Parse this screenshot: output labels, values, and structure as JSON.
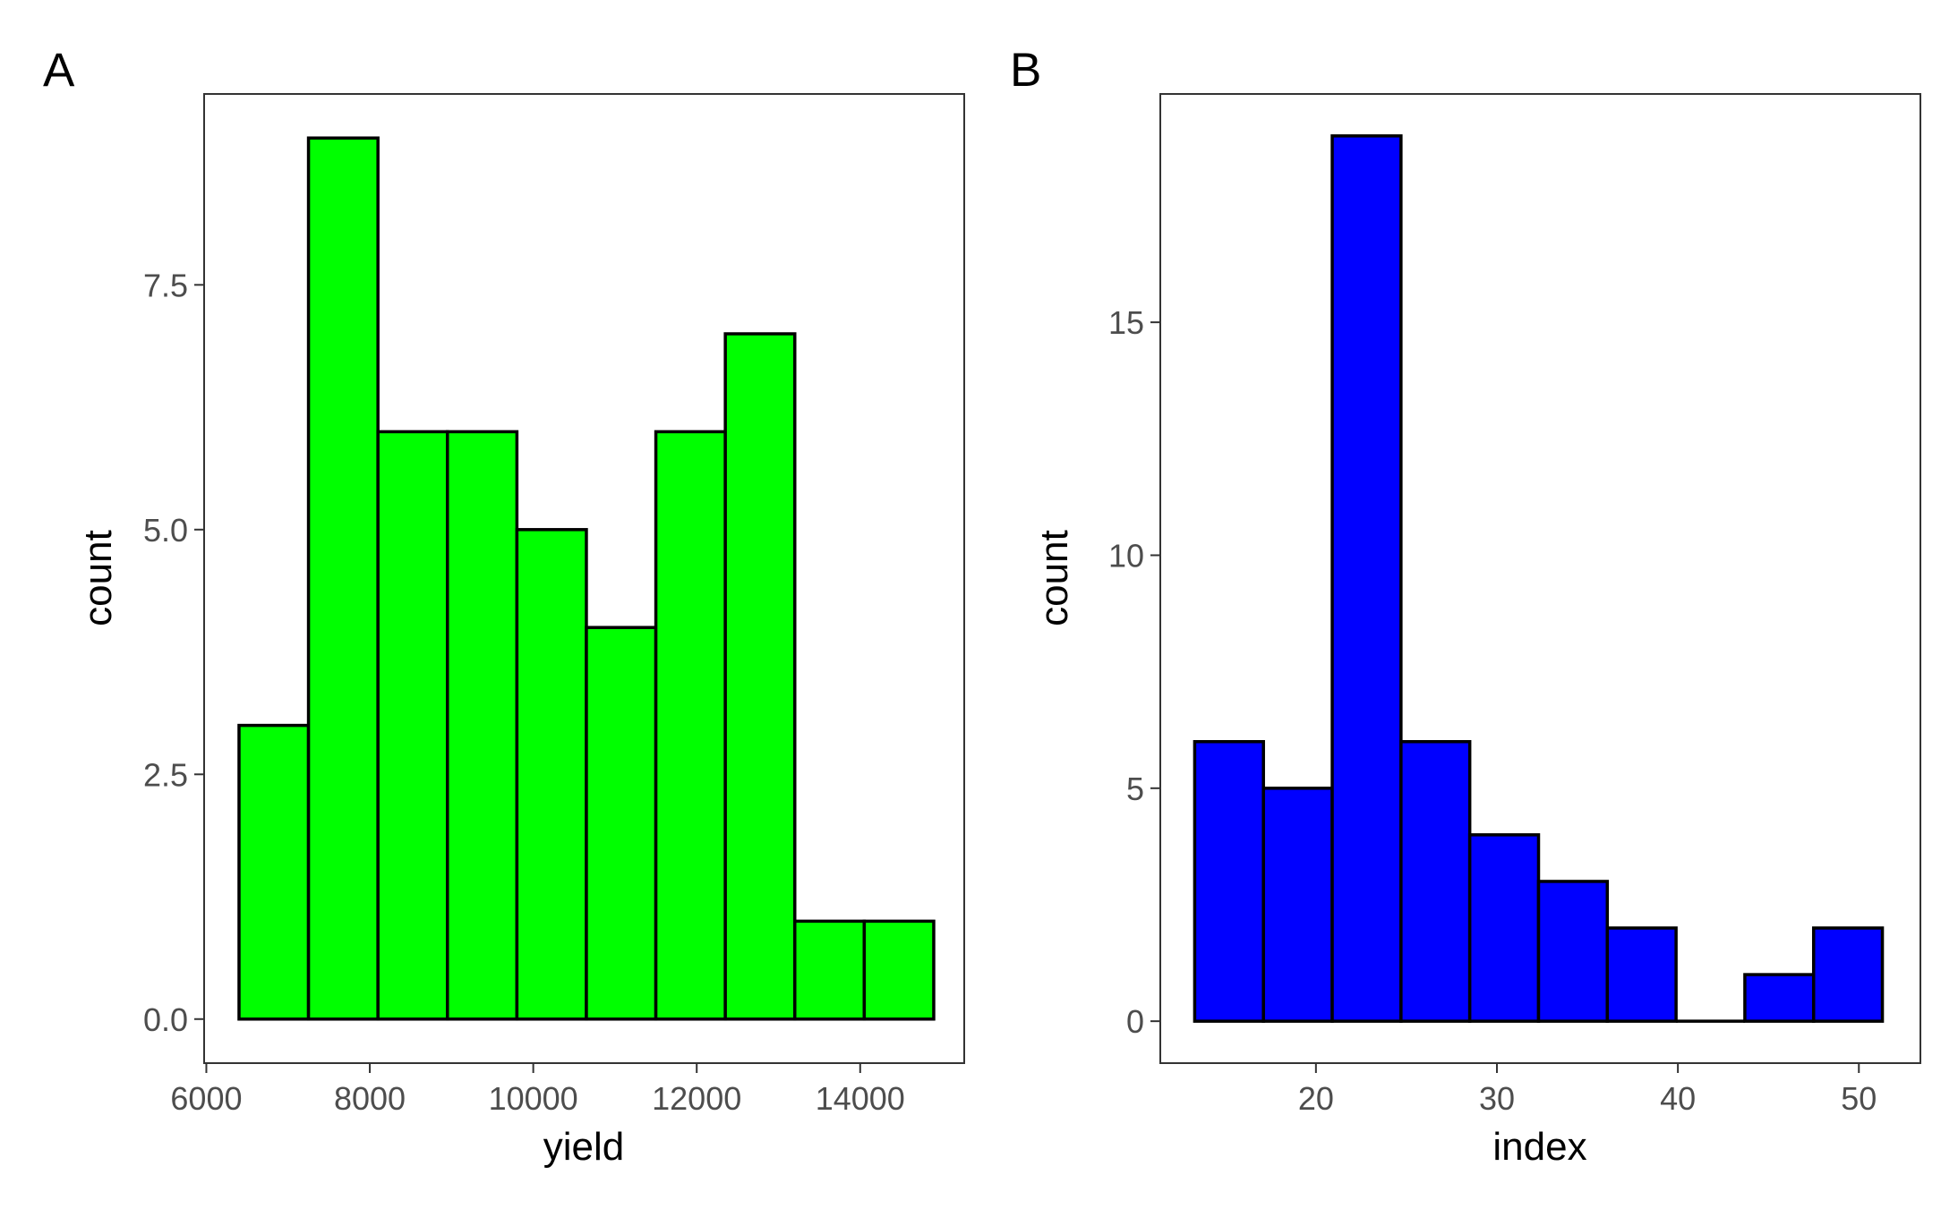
{
  "chart_data": [
    {
      "type": "bar",
      "panel_tag": "A",
      "xlabel": "yield",
      "ylabel": "count",
      "fill_color": "#00ff00",
      "outline_color": "#000000",
      "xlim": [
        5973,
        15273
      ],
      "ylim": [
        -0.45,
        9.45
      ],
      "grid": false,
      "x_ticks": [
        {
          "value": 6000,
          "label": "6000"
        },
        {
          "value": 8000,
          "label": "8000"
        },
        {
          "value": 10000,
          "label": "10000"
        },
        {
          "value": 12000,
          "label": "12000"
        },
        {
          "value": 14000,
          "label": "14000"
        }
      ],
      "y_ticks": [
        {
          "value": 0,
          "label": "0.0"
        },
        {
          "value": 2.5,
          "label": "2.5"
        },
        {
          "value": 5,
          "label": "5.0"
        },
        {
          "value": 7.5,
          "label": "7.5"
        }
      ],
      "bins": [
        {
          "x0": 6400,
          "x1": 7250,
          "count": 3
        },
        {
          "x0": 7250,
          "x1": 8100,
          "count": 9
        },
        {
          "x0": 8100,
          "x1": 8950,
          "count": 6
        },
        {
          "x0": 8950,
          "x1": 9800,
          "count": 6
        },
        {
          "x0": 9800,
          "x1": 10650,
          "count": 5
        },
        {
          "x0": 10650,
          "x1": 11500,
          "count": 4
        },
        {
          "x0": 11500,
          "x1": 12350,
          "count": 6
        },
        {
          "x0": 12350,
          "x1": 13200,
          "count": 7
        },
        {
          "x0": 13200,
          "x1": 14050,
          "count": 1
        },
        {
          "x0": 14050,
          "x1": 14900,
          "count": 1
        }
      ]
    },
    {
      "type": "bar",
      "panel_tag": "B",
      "xlabel": "index",
      "ylabel": "count",
      "fill_color": "#0000ff",
      "outline_color": "#000000",
      "xlim": [
        11.4,
        53.4
      ],
      "ylim": [
        -0.9,
        19.9
      ],
      "grid": false,
      "x_ticks": [
        {
          "value": 20,
          "label": "20"
        },
        {
          "value": 30,
          "label": "30"
        },
        {
          "value": 40,
          "label": "40"
        },
        {
          "value": 50,
          "label": "50"
        }
      ],
      "y_ticks": [
        {
          "value": 0,
          "label": "0"
        },
        {
          "value": 5,
          "label": "5"
        },
        {
          "value": 10,
          "label": "10"
        },
        {
          "value": 15,
          "label": "15"
        }
      ],
      "bins": [
        {
          "x0": 13.3,
          "x1": 17.1,
          "count": 6
        },
        {
          "x0": 17.1,
          "x1": 20.9,
          "count": 5
        },
        {
          "x0": 20.9,
          "x1": 24.7,
          "count": 19
        },
        {
          "x0": 24.7,
          "x1": 28.5,
          "count": 6
        },
        {
          "x0": 28.5,
          "x1": 32.3,
          "count": 4
        },
        {
          "x0": 32.3,
          "x1": 36.1,
          "count": 3
        },
        {
          "x0": 36.1,
          "x1": 39.9,
          "count": 2
        },
        {
          "x0": 39.9,
          "x1": 43.7,
          "count": 0
        },
        {
          "x0": 43.7,
          "x1": 47.5,
          "count": 1
        },
        {
          "x0": 47.5,
          "x1": 51.3,
          "count": 2
        }
      ]
    }
  ]
}
